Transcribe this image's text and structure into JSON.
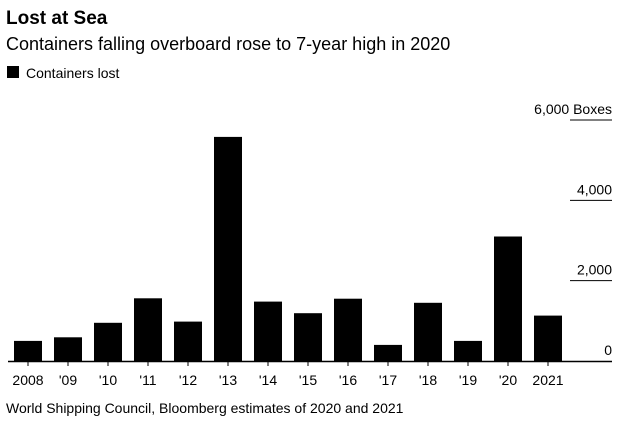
{
  "colors": {
    "bar": "#000000",
    "background": "#ffffff",
    "text": "#000000"
  },
  "chart_data": {
    "type": "bar",
    "title": "Lost at Sea",
    "subtitle": "Containers falling overboard rose to 7-year high in 2020",
    "legend": {
      "label": "Containers lost",
      "position": "top-left"
    },
    "categories": [
      "2008",
      "'09",
      "'10",
      "'11",
      "'12",
      "'13",
      "'14",
      "'15",
      "'16",
      "'17",
      "'18",
      "'19",
      "'20",
      "2021"
    ],
    "series": [
      {
        "name": "Containers lost",
        "values": [
          500,
          590,
          950,
          1560,
          980,
          5580,
          1480,
          1190,
          1550,
          400,
          1450,
          500,
          3100,
          1130
        ]
      }
    ],
    "ylim": [
      0,
      6000
    ],
    "yticks": [
      0,
      2000,
      4000,
      6000
    ],
    "ytick_labels": [
      "0",
      "2,000",
      "4,000",
      "6,000"
    ],
    "yunit": "Boxes",
    "y_axis_side": "right",
    "grid": false,
    "source": "World Shipping Council, Bloomberg estimates of 2020 and 2021"
  }
}
